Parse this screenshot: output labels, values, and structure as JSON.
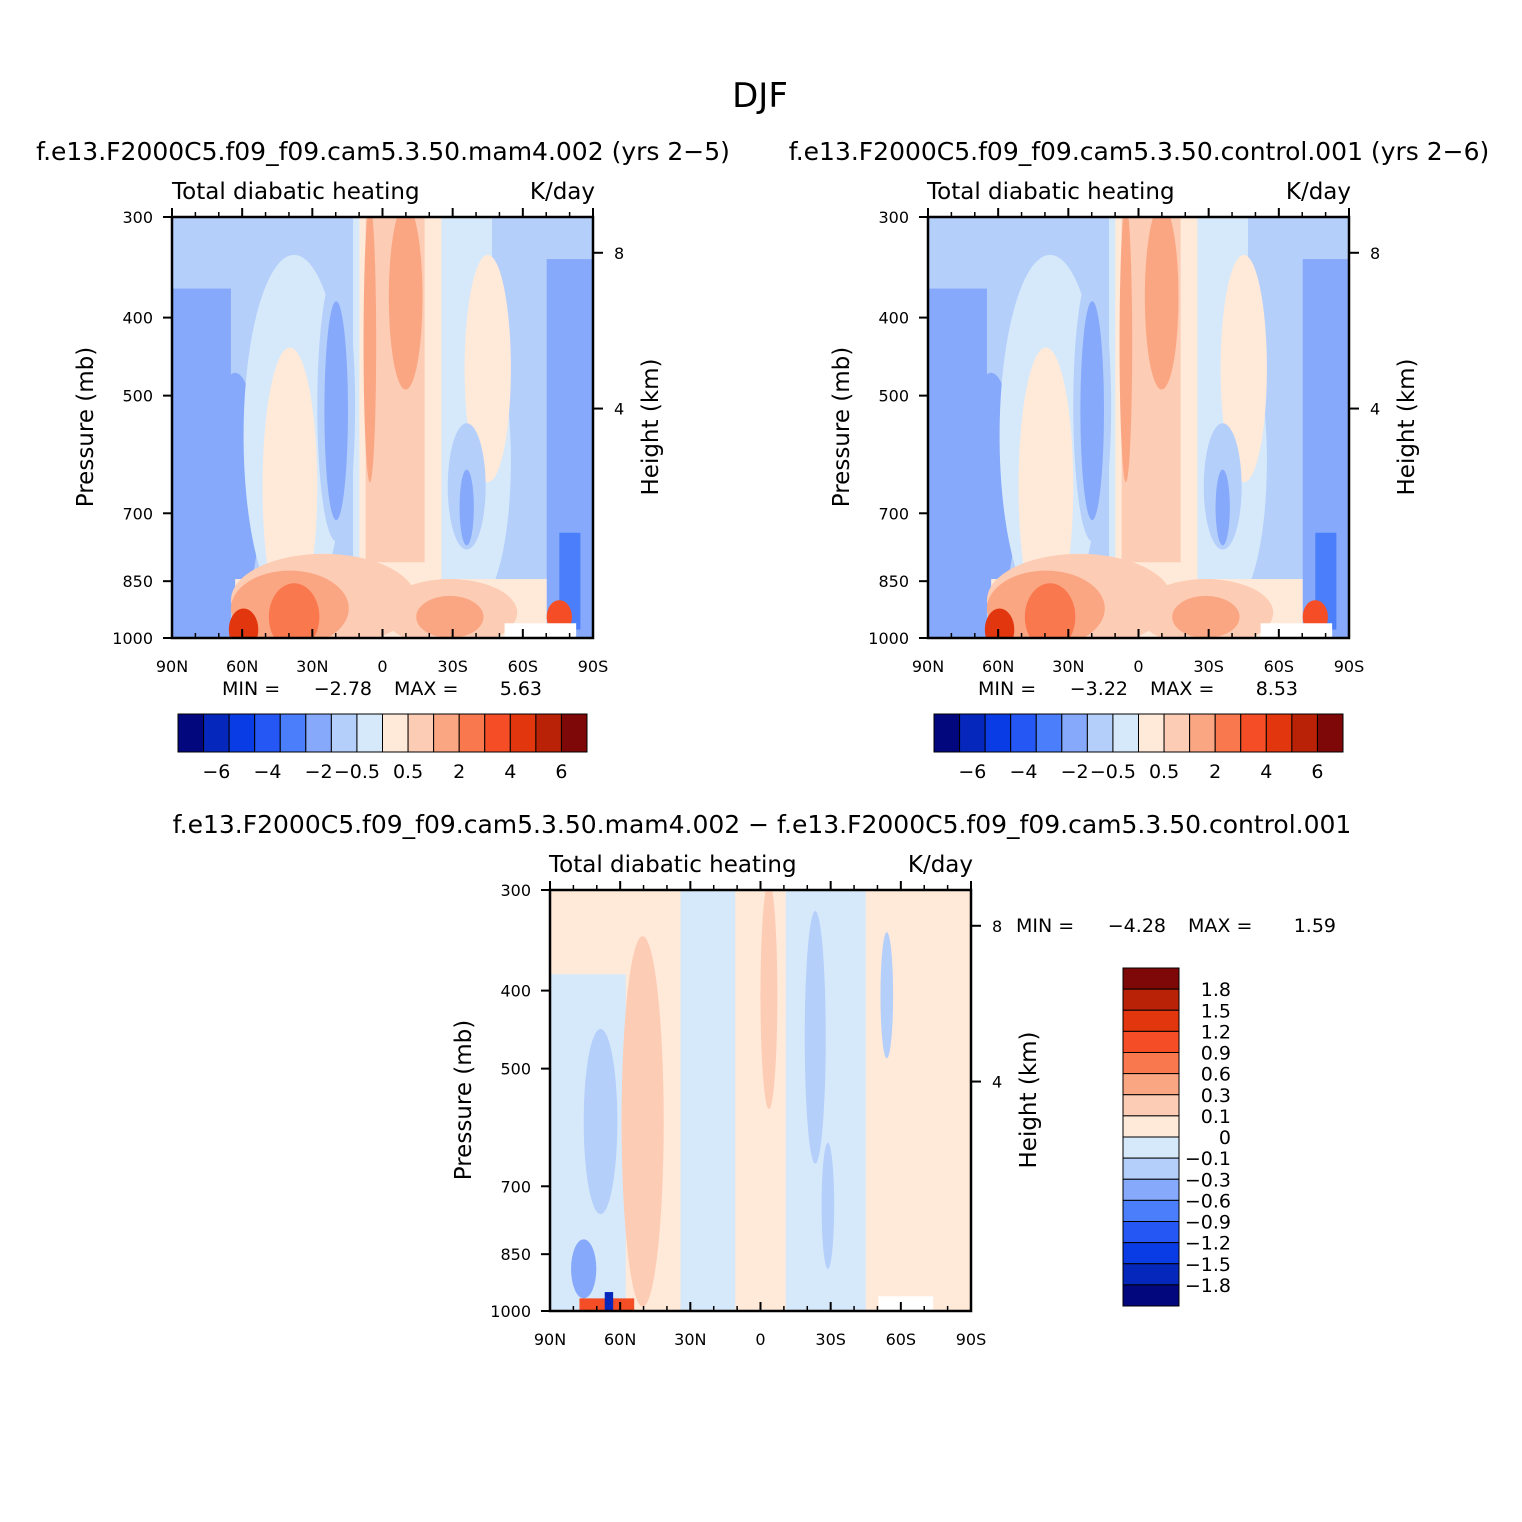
{
  "page_title": "DJF",
  "colors": {
    "warm": [
      "#FFE9D9",
      "#FDCCB4",
      "#FBA683",
      "#F9784E",
      "#F54E26",
      "#E2360E",
      "#B92206",
      "#7E0707"
    ],
    "cool": [
      "#D6E9FA",
      "#B5CFFB",
      "#86A9FB",
      "#4A7EFA",
      "#2557F5",
      "#0A3CE5",
      "#0527BC",
      "#03077E"
    ]
  },
  "chart_data": [
    {
      "type": "contour",
      "title": "f.e13.F2000C5.f09_f09.cam5.3.50.mam4.002 (yrs 2−5)",
      "left_label": "Total diabatic heating",
      "right_label": "K/day",
      "ylabel": "Pressure (mb)",
      "y2label": "Height (km)",
      "x_ticks": [
        "90N",
        "60N",
        "30N",
        "0",
        "30S",
        "60S",
        "90S"
      ],
      "y_ticks": [
        "300",
        "400",
        "500",
        "700",
        "850",
        "1000"
      ],
      "y2_ticks": [
        "8",
        "4"
      ],
      "min_label": "MIN =",
      "min_value": "−2.78",
      "max_label": "MAX =",
      "max_value": "5.63",
      "colorbar_labels": [
        "−6",
        "−4",
        "−2",
        "−0.5",
        "0.5",
        "2",
        "4",
        "6"
      ]
    },
    {
      "type": "contour",
      "title": "f.e13.F2000C5.f09_f09.cam5.3.50.control.001 (yrs 2−6)",
      "left_label": "Total diabatic heating",
      "right_label": "K/day",
      "ylabel": "Pressure (mb)",
      "y2label": "Height (km)",
      "x_ticks": [
        "90N",
        "60N",
        "30N",
        "0",
        "30S",
        "60S",
        "90S"
      ],
      "y_ticks": [
        "300",
        "400",
        "500",
        "700",
        "850",
        "1000"
      ],
      "y2_ticks": [
        "8",
        "4"
      ],
      "min_label": "MIN =",
      "min_value": "−3.22",
      "max_label": "MAX =",
      "max_value": "8.53",
      "colorbar_labels": [
        "−6",
        "−4",
        "−2",
        "−0.5",
        "0.5",
        "2",
        "4",
        "6"
      ]
    },
    {
      "type": "contour",
      "title": "f.e13.F2000C5.f09_f09.cam5.3.50.mam4.002 − f.e13.F2000C5.f09_f09.cam5.3.50.control.001",
      "left_label": "Total diabatic heating",
      "right_label": "K/day",
      "ylabel": "Pressure (mb)",
      "y2label": "Height (km)",
      "x_ticks": [
        "90N",
        "60N",
        "30N",
        "0",
        "30S",
        "60S",
        "90S"
      ],
      "y_ticks": [
        "300",
        "400",
        "500",
        "700",
        "850",
        "1000"
      ],
      "y2_ticks": [
        "8",
        "4"
      ],
      "min_label": "MIN =",
      "min_value": "−4.28",
      "max_label": "MAX =",
      "max_value": "1.59",
      "colorbar_labels": [
        "1.8",
        "1.5",
        "1.2",
        "0.9",
        "0.6",
        "0.3",
        "0.1",
        "0",
        "−0.1",
        "−0.3",
        "−0.6",
        "−0.9",
        "−1.2",
        "−1.5",
        "−1.8"
      ]
    }
  ]
}
